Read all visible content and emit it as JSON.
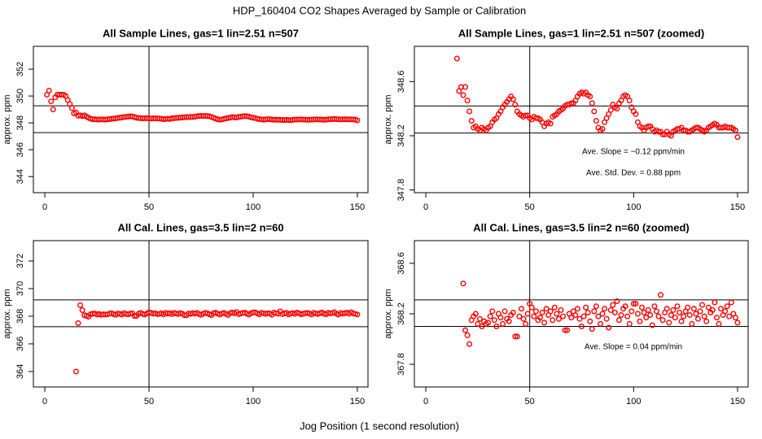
{
  "title": "HDP_160404  CO2 Shapes Averaged by Sample or Calibration",
  "x_label": "Jog Position (1 second resolution)",
  "chart_data": [
    {
      "type": "scatter",
      "title": "All Sample Lines, gas=1 lin=2.51 n=507",
      "y_label": "approx. ppm",
      "color": "#ff0000",
      "xlim": [
        -5.5,
        155.1
      ],
      "xticks": [
        0,
        50,
        100,
        150
      ],
      "ylim": [
        342.8,
        353.7
      ],
      "yticks": [
        344,
        346,
        348,
        350,
        352
      ],
      "hlines": [
        349.27,
        347.27
      ],
      "vlines": [
        50
      ],
      "x": [
        1,
        2,
        3,
        4,
        5,
        6,
        7,
        8,
        9,
        10,
        11,
        12,
        13,
        14,
        15,
        16,
        17,
        18,
        19,
        20,
        21,
        22,
        23,
        24,
        25,
        26,
        27,
        28,
        29,
        30,
        31,
        32,
        33,
        34,
        35,
        36,
        37,
        38,
        39,
        40,
        41,
        42,
        43,
        44,
        45,
        46,
        47,
        48,
        49,
        50,
        51,
        52,
        53,
        54,
        55,
        56,
        57,
        58,
        59,
        60,
        61,
        62,
        63,
        64,
        65,
        66,
        67,
        68,
        69,
        70,
        71,
        72,
        73,
        74,
        75,
        76,
        77,
        78,
        79,
        80,
        81,
        82,
        83,
        84,
        85,
        86,
        87,
        88,
        89,
        90,
        91,
        92,
        93,
        94,
        95,
        96,
        97,
        98,
        99,
        100,
        101,
        102,
        103,
        104,
        105,
        106,
        107,
        108,
        109,
        110,
        111,
        112,
        113,
        114,
        115,
        116,
        117,
        118,
        119,
        120,
        121,
        122,
        123,
        124,
        125,
        126,
        127,
        128,
        129,
        130,
        131,
        132,
        133,
        134,
        135,
        136,
        137,
        138,
        139,
        140,
        141,
        142,
        143,
        144,
        145,
        146,
        147,
        148,
        149,
        150
      ],
      "values": [
        350.1,
        350.4,
        349.6,
        349.0,
        349.9,
        350.1,
        350.1,
        350.1,
        350.1,
        350.0,
        349.7,
        349.4,
        349.1,
        348.7,
        348.77,
        348.53,
        348.56,
        348.5,
        348.56,
        348.46,
        348.38,
        348.31,
        348.26,
        348.27,
        348.25,
        348.24,
        348.26,
        348.25,
        348.24,
        348.26,
        348.27,
        348.3,
        348.32,
        348.33,
        348.36,
        348.38,
        348.41,
        348.43,
        348.45,
        348.47,
        348.49,
        348.47,
        348.43,
        348.38,
        348.36,
        348.35,
        348.34,
        348.35,
        348.35,
        348.33,
        348.32,
        348.34,
        348.33,
        348.33,
        348.32,
        348.3,
        348.27,
        348.29,
        348.3,
        348.29,
        348.34,
        348.35,
        348.36,
        348.38,
        348.39,
        348.4,
        348.42,
        348.43,
        348.43,
        348.44,
        348.44,
        348.46,
        348.49,
        348.51,
        348.52,
        348.51,
        348.52,
        348.5,
        348.49,
        348.44,
        348.38,
        348.31,
        348.26,
        348.24,
        348.25,
        348.3,
        348.33,
        348.36,
        348.39,
        348.43,
        348.41,
        348.4,
        348.44,
        348.46,
        348.49,
        348.5,
        348.49,
        348.46,
        348.41,
        348.38,
        348.36,
        348.3,
        348.27,
        348.26,
        348.24,
        348.26,
        348.27,
        348.27,
        348.25,
        348.23,
        348.24,
        348.23,
        348.23,
        348.21,
        348.21,
        348.23,
        348.21,
        348.2,
        348.23,
        348.24,
        348.25,
        348.25,
        348.26,
        348.24,
        348.24,
        348.23,
        348.23,
        348.24,
        348.25,
        348.26,
        348.26,
        348.25,
        348.24,
        348.23,
        348.24,
        348.26,
        348.27,
        348.28,
        348.29,
        348.28,
        348.26,
        348.26,
        348.26,
        348.27,
        348.26,
        348.26,
        348.26,
        348.25,
        348.24,
        348.19
      ]
    },
    {
      "type": "scatter",
      "title": "All Sample Lines, gas=1 lin=2.51 n=507 (zoomed)",
      "y_label": "approx. ppm",
      "color": "#ff0000",
      "xlim": [
        -5.5,
        155.1
      ],
      "xticks": [
        0,
        50,
        100,
        150
      ],
      "ylim": [
        347.78,
        348.86
      ],
      "yticks": [
        347.8,
        348.2,
        348.6
      ],
      "hlines": [
        348.42,
        348.22
      ],
      "vlines": [
        50
      ],
      "annotations": [
        "Ave. Slope =  −0.12  ppm/min",
        "Ave. Std. Dev. =  0.88  ppm"
      ],
      "x": [
        15,
        16,
        17,
        18,
        19,
        20,
        21,
        22,
        23,
        24,
        25,
        26,
        27,
        28,
        29,
        30,
        31,
        32,
        33,
        34,
        35,
        36,
        37,
        38,
        39,
        40,
        41,
        42,
        43,
        44,
        45,
        46,
        47,
        48,
        49,
        50,
        51,
        52,
        53,
        54,
        55,
        56,
        57,
        58,
        59,
        60,
        61,
        62,
        63,
        64,
        65,
        66,
        67,
        68,
        69,
        70,
        71,
        72,
        73,
        74,
        75,
        76,
        77,
        78,
        79,
        80,
        81,
        82,
        83,
        84,
        85,
        86,
        87,
        88,
        89,
        90,
        91,
        92,
        93,
        94,
        95,
        96,
        97,
        98,
        99,
        100,
        101,
        102,
        103,
        104,
        105,
        106,
        107,
        108,
        109,
        110,
        111,
        112,
        113,
        114,
        115,
        116,
        117,
        118,
        119,
        120,
        121,
        122,
        123,
        124,
        125,
        126,
        127,
        128,
        129,
        130,
        131,
        132,
        133,
        134,
        135,
        136,
        137,
        138,
        139,
        140,
        141,
        142,
        143,
        144,
        145,
        146,
        147,
        148,
        149,
        150
      ],
      "values": [
        348.77,
        348.53,
        348.56,
        348.5,
        348.56,
        348.46,
        348.38,
        348.31,
        348.26,
        348.27,
        348.25,
        348.24,
        348.26,
        348.25,
        348.24,
        348.26,
        348.27,
        348.3,
        348.32,
        348.33,
        348.36,
        348.38,
        348.41,
        348.43,
        348.45,
        348.47,
        348.49,
        348.47,
        348.43,
        348.38,
        348.36,
        348.35,
        348.34,
        348.35,
        348.35,
        348.33,
        348.32,
        348.34,
        348.33,
        348.33,
        348.32,
        348.3,
        348.27,
        348.29,
        348.3,
        348.29,
        348.34,
        348.35,
        348.36,
        348.38,
        348.39,
        348.4,
        348.42,
        348.43,
        348.43,
        348.44,
        348.44,
        348.46,
        348.49,
        348.51,
        348.52,
        348.51,
        348.52,
        348.5,
        348.49,
        348.44,
        348.38,
        348.31,
        348.26,
        348.24,
        348.25,
        348.3,
        348.33,
        348.36,
        348.39,
        348.43,
        348.41,
        348.4,
        348.44,
        348.46,
        348.49,
        348.5,
        348.49,
        348.46,
        348.41,
        348.38,
        348.36,
        348.3,
        348.27,
        348.26,
        348.24,
        348.26,
        348.27,
        348.27,
        348.25,
        348.23,
        348.24,
        348.23,
        348.23,
        348.21,
        348.21,
        348.23,
        348.21,
        348.2,
        348.23,
        348.24,
        348.25,
        348.25,
        348.26,
        348.24,
        348.24,
        348.23,
        348.23,
        348.24,
        348.25,
        348.26,
        348.26,
        348.25,
        348.24,
        348.23,
        348.24,
        348.26,
        348.27,
        348.28,
        348.29,
        348.28,
        348.26,
        348.26,
        348.26,
        348.27,
        348.26,
        348.26,
        348.26,
        348.25,
        348.24,
        348.19
      ]
    },
    {
      "type": "scatter",
      "title": "All Cal. Lines, gas=3.5 lin=2 n=60",
      "y_label": "approx. ppm",
      "color": "#ff0000",
      "xlim": [
        -5.5,
        155.1
      ],
      "xticks": [
        0,
        50,
        100,
        150
      ],
      "ylim": [
        362.88,
        373.47
      ],
      "yticks": [
        364,
        366,
        368,
        370,
        372
      ],
      "hlines": [
        369.18,
        367.24
      ],
      "vlines": [
        50
      ],
      "x": [
        15,
        16,
        17,
        18,
        19,
        20,
        21,
        22,
        23,
        24,
        25,
        26,
        27,
        28,
        29,
        30,
        31,
        32,
        33,
        34,
        35,
        36,
        37,
        38,
        39,
        40,
        41,
        42,
        43,
        44,
        45,
        46,
        47,
        48,
        49,
        50,
        51,
        52,
        53,
        54,
        55,
        56,
        57,
        58,
        59,
        60,
        61,
        62,
        63,
        64,
        65,
        66,
        67,
        68,
        69,
        70,
        71,
        72,
        73,
        74,
        75,
        76,
        77,
        78,
        79,
        80,
        81,
        82,
        83,
        84,
        85,
        86,
        87,
        88,
        89,
        90,
        91,
        92,
        93,
        94,
        95,
        96,
        97,
        98,
        99,
        100,
        101,
        102,
        103,
        104,
        105,
        106,
        107,
        108,
        109,
        110,
        111,
        112,
        113,
        114,
        115,
        116,
        117,
        118,
        119,
        120,
        121,
        122,
        123,
        124,
        125,
        126,
        127,
        128,
        129,
        130,
        131,
        132,
        133,
        134,
        135,
        136,
        137,
        138,
        139,
        140,
        141,
        142,
        143,
        144,
        145,
        146,
        147,
        148,
        149,
        150
      ],
      "values": [
        364.0,
        367.5,
        368.8,
        368.44,
        368.07,
        368.03,
        367.96,
        368.15,
        368.18,
        368.2,
        368.12,
        368.16,
        368.1,
        368.14,
        368.12,
        368.13,
        368.18,
        368.22,
        368.15,
        368.1,
        368.2,
        368.17,
        368.12,
        368.22,
        368.16,
        368.14,
        368.19,
        368.21,
        368.02,
        368.02,
        368.18,
        368.24,
        368.16,
        368.12,
        368.2,
        368.28,
        368.25,
        368.18,
        368.22,
        368.15,
        368.17,
        368.21,
        368.13,
        368.24,
        368.19,
        368.22,
        368.15,
        368.25,
        368.2,
        368.16,
        368.23,
        368.18,
        368.07,
        368.07,
        368.2,
        368.17,
        368.22,
        368.19,
        368.24,
        368.16,
        368.1,
        368.18,
        368.25,
        368.21,
        368.14,
        368.08,
        368.22,
        368.26,
        368.18,
        368.12,
        368.2,
        368.24,
        368.16,
        368.09,
        368.23,
        368.27,
        368.21,
        368.3,
        368.15,
        368.19,
        368.24,
        368.26,
        368.18,
        368.12,
        368.22,
        368.28,
        368.28,
        368.2,
        368.14,
        368.25,
        368.21,
        368.17,
        368.23,
        368.19,
        368.11,
        368.26,
        368.22,
        368.18,
        368.35,
        368.15,
        368.21,
        368.24,
        368.13,
        368.19,
        368.23,
        368.17,
        368.26,
        368.21,
        368.14,
        368.18,
        368.22,
        368.25,
        368.19,
        368.12,
        368.24,
        368.2,
        368.16,
        368.22,
        368.27,
        368.18,
        368.14,
        368.25,
        368.21,
        368.23,
        368.29,
        368.17,
        368.12,
        368.24,
        368.19,
        368.22,
        368.26,
        368.18,
        368.29,
        368.2,
        368.17,
        368.13
      ]
    },
    {
      "type": "scatter",
      "title": "All Cal. Lines, gas=3.5 lin=2 n=60 (zoomed)",
      "y_label": "approx. ppm",
      "color": "#ff0000",
      "xlim": [
        -5.5,
        155.1
      ],
      "xticks": [
        0,
        50,
        100,
        150
      ],
      "ylim": [
        367.62,
        368.78
      ],
      "yticks": [
        367.8,
        368.2,
        368.6
      ],
      "hlines": [
        368.31,
        368.1
      ],
      "vlines": [
        50
      ],
      "annotations": [
        "Ave. Slope =  0.04  ppm/min"
      ],
      "x": [
        18,
        19,
        20,
        21,
        22,
        23,
        24,
        25,
        26,
        27,
        28,
        29,
        30,
        31,
        32,
        33,
        34,
        35,
        36,
        37,
        38,
        39,
        40,
        41,
        42,
        43,
        44,
        45,
        46,
        47,
        48,
        49,
        50,
        51,
        52,
        53,
        54,
        55,
        56,
        57,
        58,
        59,
        60,
        61,
        62,
        63,
        64,
        65,
        66,
        67,
        68,
        69,
        70,
        71,
        72,
        73,
        74,
        75,
        76,
        77,
        78,
        79,
        80,
        81,
        82,
        83,
        84,
        85,
        86,
        87,
        88,
        89,
        90,
        91,
        92,
        93,
        94,
        95,
        96,
        97,
        98,
        99,
        100,
        101,
        102,
        103,
        104,
        105,
        106,
        107,
        108,
        109,
        110,
        111,
        112,
        113,
        114,
        115,
        116,
        117,
        118,
        119,
        120,
        121,
        122,
        123,
        124,
        125,
        126,
        127,
        128,
        129,
        130,
        131,
        132,
        133,
        134,
        135,
        136,
        137,
        138,
        139,
        140,
        141,
        142,
        143,
        144,
        145,
        146,
        147,
        148,
        149,
        150
      ],
      "values": [
        368.44,
        368.07,
        368.03,
        367.96,
        368.15,
        368.18,
        368.2,
        368.12,
        368.16,
        368.1,
        368.14,
        368.12,
        368.13,
        368.18,
        368.22,
        368.15,
        368.1,
        368.2,
        368.17,
        368.12,
        368.22,
        368.16,
        368.14,
        368.19,
        368.21,
        368.02,
        368.02,
        368.18,
        368.24,
        368.16,
        368.12,
        368.2,
        368.28,
        368.25,
        368.18,
        368.22,
        368.15,
        368.17,
        368.21,
        368.13,
        368.24,
        368.19,
        368.22,
        368.15,
        368.25,
        368.2,
        368.16,
        368.23,
        368.18,
        368.07,
        368.07,
        368.2,
        368.17,
        368.22,
        368.19,
        368.24,
        368.16,
        368.1,
        368.18,
        368.25,
        368.21,
        368.14,
        368.08,
        368.22,
        368.26,
        368.18,
        368.12,
        368.2,
        368.24,
        368.16,
        368.09,
        368.23,
        368.27,
        368.21,
        368.3,
        368.15,
        368.19,
        368.24,
        368.26,
        368.18,
        368.12,
        368.22,
        368.28,
        368.28,
        368.2,
        368.14,
        368.25,
        368.21,
        368.17,
        368.23,
        368.19,
        368.11,
        368.26,
        368.22,
        368.18,
        368.35,
        368.15,
        368.21,
        368.24,
        368.13,
        368.19,
        368.23,
        368.17,
        368.26,
        368.21,
        368.14,
        368.18,
        368.22,
        368.25,
        368.19,
        368.12,
        368.24,
        368.2,
        368.16,
        368.22,
        368.27,
        368.18,
        368.14,
        368.25,
        368.21,
        368.23,
        368.29,
        368.17,
        368.12,
        368.24,
        368.19,
        368.22,
        368.26,
        368.18,
        368.29,
        368.2,
        368.17,
        368.13
      ]
    }
  ]
}
